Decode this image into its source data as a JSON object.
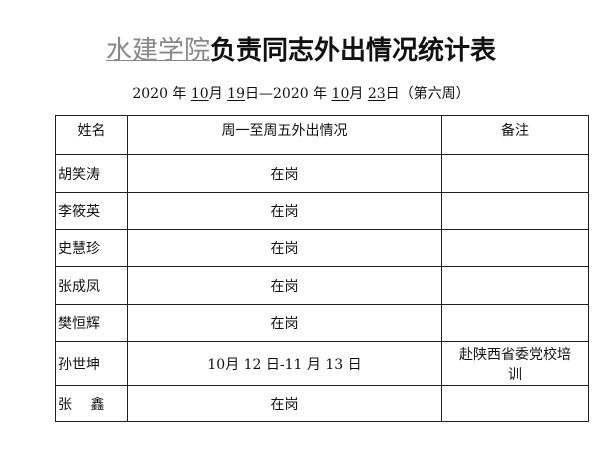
{
  "title": {
    "org": "水建学院",
    "rest": "负责同志外出情况统计表"
  },
  "subtitle": {
    "y1": "2020",
    "t1": " 年 ",
    "m1": "10",
    "t2": "月 ",
    "d1": "19",
    "t3": "日—",
    "y2": "2020",
    "t4": " 年 ",
    "m2": "10",
    "t5": "月 ",
    "d2": "23",
    "t6": "日（第六周）"
  },
  "table": {
    "headers": [
      "姓名",
      "周一至周五外出情况",
      "备注"
    ],
    "rows": [
      {
        "name": "胡笑涛",
        "status": "在岗",
        "note": ""
      },
      {
        "name": "李筱英",
        "status": "在岗",
        "note": ""
      },
      {
        "name": "史慧珍",
        "status": "在岗",
        "note": ""
      },
      {
        "name": "张成凤",
        "status": "在岗",
        "note": ""
      },
      {
        "name": "樊恒辉",
        "status": "在岗",
        "note": ""
      },
      {
        "name": "孙世坤",
        "status": "10月 12 日-11 月 13 日",
        "note": "赴陕西省委党校培训"
      },
      {
        "name": "张　 鑫",
        "status": "在岗",
        "note": ""
      }
    ]
  }
}
